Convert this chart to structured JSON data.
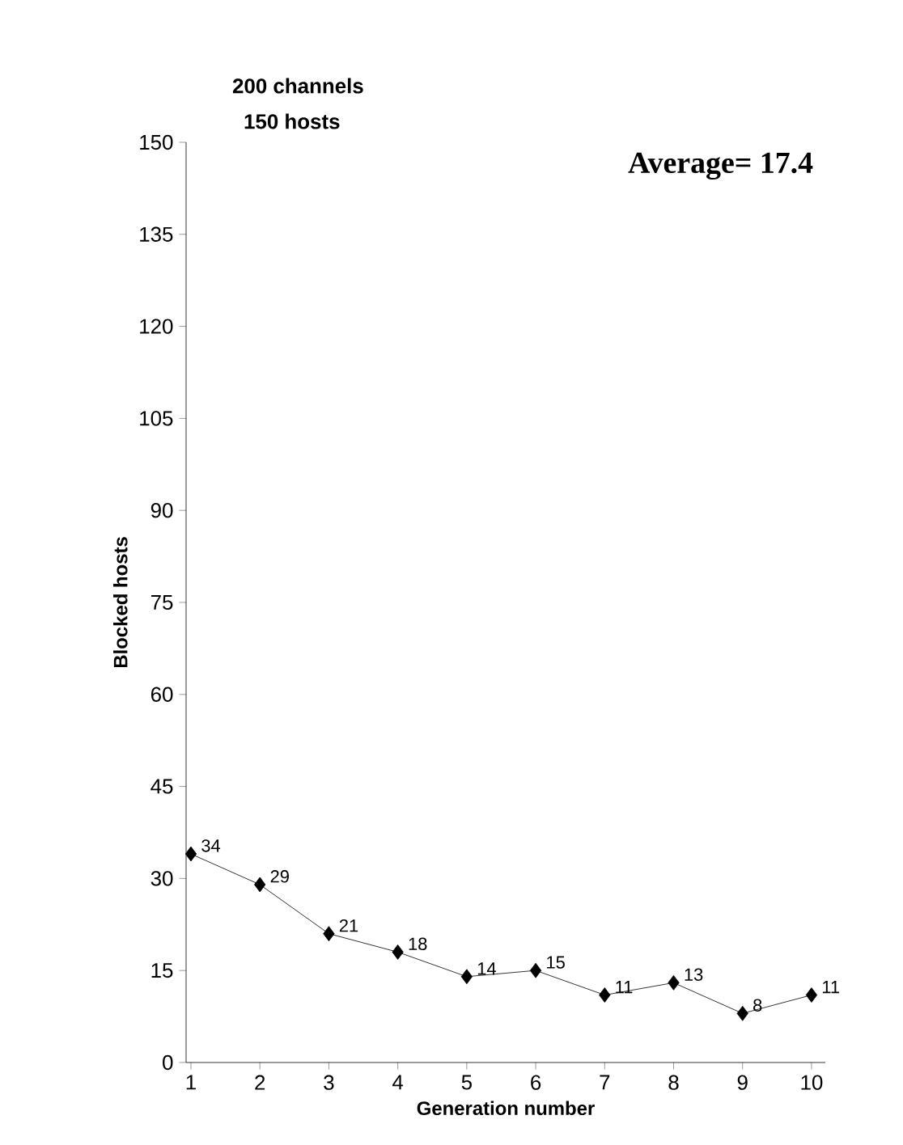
{
  "chart_data": {
    "type": "line",
    "title": "200 channels",
    "subtitle": "150 hosts",
    "xlabel": "Generation number",
    "ylabel": "Blocked hosts",
    "annotations": [
      "Average= 17.4"
    ],
    "x": [
      1,
      2,
      3,
      4,
      5,
      6,
      7,
      8,
      9,
      10
    ],
    "values": [
      34,
      29,
      21,
      18,
      14,
      15,
      11,
      13,
      8,
      11
    ],
    "color": "#000000",
    "marker": "diamond",
    "line_style": "solid",
    "data_labels": true,
    "grid": false,
    "xlim": [
      0.93,
      10.2
    ],
    "xticks": [
      1,
      2,
      3,
      4,
      5,
      6,
      7,
      8,
      9,
      10
    ],
    "ylim": [
      0,
      150
    ],
    "yticks": [
      0,
      15,
      30,
      45,
      60,
      75,
      90,
      105,
      120,
      135,
      150
    ]
  }
}
